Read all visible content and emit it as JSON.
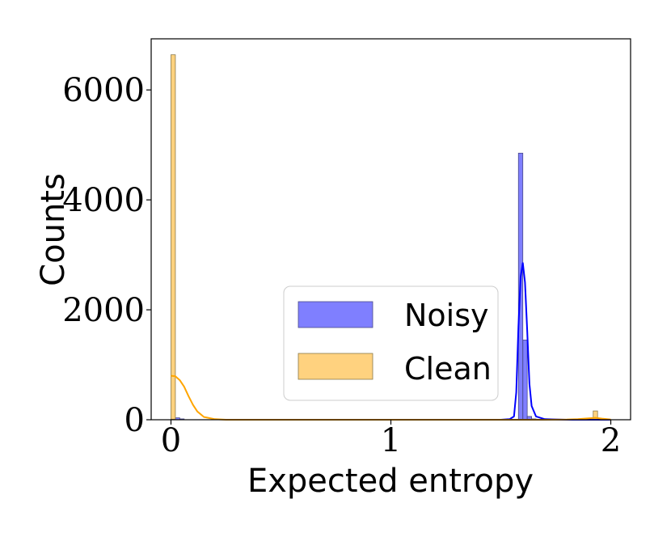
{
  "chart_data": {
    "type": "histogram",
    "title": "",
    "xlabel": "Expected entropy",
    "ylabel": "Counts",
    "xlim": [
      -0.09,
      2.09
    ],
    "ylim": [
      0,
      6930
    ],
    "xticks": [
      0,
      1,
      2
    ],
    "xtick_labels": [
      "0",
      "1",
      "2"
    ],
    "yticks": [
      0,
      2000,
      4000,
      6000
    ],
    "ytick_labels": [
      "0",
      "2000",
      "4000",
      "6000"
    ],
    "grid": false,
    "legend_position": "lower-center",
    "series": [
      {
        "name": "Noisy",
        "color": "#0000ff",
        "bars": [
          {
            "x0": 0.0,
            "x1": 0.02,
            "count": 10
          },
          {
            "x0": 0.02,
            "x1": 0.04,
            "count": 35
          },
          {
            "x0": 0.04,
            "x1": 0.06,
            "count": 15
          },
          {
            "x0": 1.58,
            "x1": 1.6,
            "count": 4850
          },
          {
            "x0": 1.6,
            "x1": 1.62,
            "count": 1450
          },
          {
            "x0": 1.62,
            "x1": 1.64,
            "count": 60
          },
          {
            "x0": 1.64,
            "x1": 1.66,
            "count": 15
          }
        ],
        "kde": {
          "x": [
            1.5,
            1.54,
            1.56,
            1.57,
            1.58,
            1.59,
            1.6,
            1.61,
            1.62,
            1.63,
            1.64,
            1.66,
            1.7,
            1.8,
            2.0
          ],
          "y": [
            0,
            10,
            60,
            500,
            1700,
            2600,
            2850,
            2500,
            1600,
            650,
            250,
            60,
            10,
            0,
            0
          ]
        }
      },
      {
        "name": "Clean",
        "color": "#ffa500",
        "bars": [
          {
            "x0": 0.0,
            "x1": 0.02,
            "count": 6640
          },
          {
            "x0": 1.92,
            "x1": 1.94,
            "count": 160
          },
          {
            "x0": 1.94,
            "x1": 1.96,
            "count": 15
          }
        ],
        "kde": {
          "x": [
            0.0,
            0.02,
            0.04,
            0.06,
            0.08,
            0.1,
            0.12,
            0.15,
            0.2,
            0.25,
            0.3,
            1.0,
            1.7,
            1.8,
            1.85,
            1.9,
            1.93,
            1.96,
            2.0
          ],
          "y": [
            800,
            790,
            720,
            600,
            430,
            270,
            150,
            50,
            10,
            0,
            0,
            0,
            0,
            5,
            12,
            25,
            35,
            20,
            5
          ]
        }
      }
    ]
  }
}
